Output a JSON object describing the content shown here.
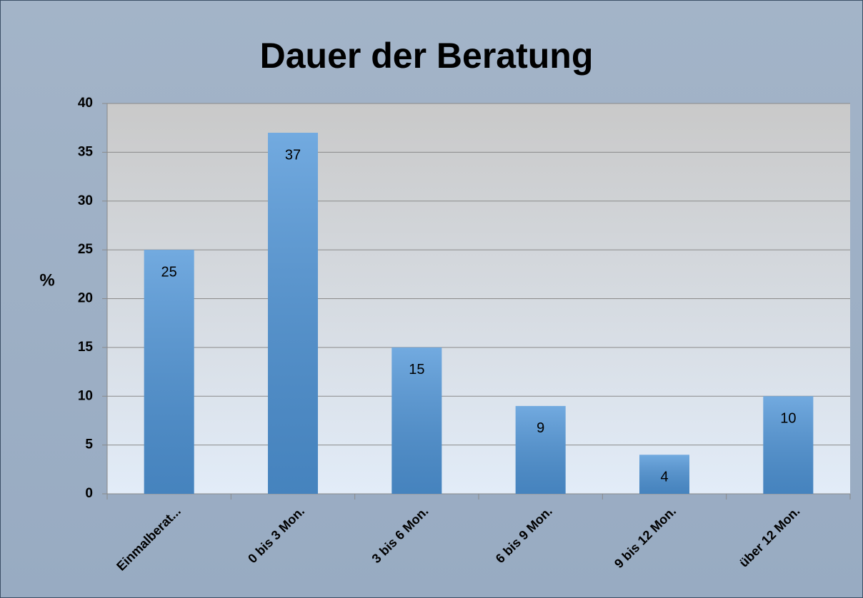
{
  "chart_data": {
    "type": "bar",
    "title": "Dauer der Beratung",
    "y_label": "%",
    "categories": [
      "Einmalberat...",
      "0 bis 3 Mon.",
      "3 bis 6 Mon.",
      "6 bis 9 Mon.",
      "9 bis 12 Mon.",
      "über 12 Mon."
    ],
    "values": [
      25,
      37,
      15,
      9,
      4,
      10
    ],
    "color": "#4f95d8",
    "ylim": [
      0,
      40
    ],
    "yticks": [
      0,
      5,
      10,
      15,
      20,
      25,
      30,
      35,
      40
    ],
    "grid": true
  }
}
